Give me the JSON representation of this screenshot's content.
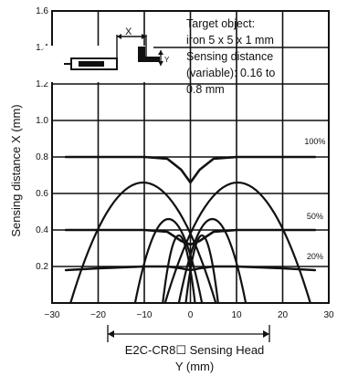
{
  "chart_data": {
    "type": "line",
    "xlabel_lines": [
      "E2C-CR8☐ Sensing Head",
      "Y (mm)"
    ],
    "ylabel": "Sensing distance X (mm)",
    "xlim": [
      -30,
      30
    ],
    "ylim": [
      0,
      1.6
    ],
    "x_ticks": [
      -30,
      -20,
      -10,
      0,
      10,
      20,
      30
    ],
    "x_tick_labels": [
      "−30",
      "−20",
      "−10",
      "0",
      "10",
      "20",
      "30"
    ],
    "y_ticks": [
      0.2,
      0.4,
      0.6,
      0.8,
      1.0,
      1.2,
      1.4,
      1.6
    ],
    "y_tick_labels": [
      "0.2",
      "0.4",
      "0.6",
      "0.8",
      "1.0",
      "1.2",
      "1.4",
      "1.6"
    ],
    "grid": true,
    "annotation": {
      "lines": [
        "Target object:",
        "iron 5 x 5 x 1 mm",
        "Sensing distance",
        "(variable): 0.16 to",
        "0.8 mm"
      ]
    },
    "inset_labels": {
      "x": "X",
      "y": "Y"
    },
    "series": [
      {
        "name": "100%",
        "x": [
          -27,
          -20,
          -10,
          -5,
          -2,
          0,
          2,
          5,
          10,
          20,
          27
        ],
        "y": [
          0.8,
          0.8,
          0.8,
          0.79,
          0.73,
          0.66,
          0.73,
          0.79,
          0.8,
          0.8,
          0.8
        ]
      },
      {
        "name": "50%",
        "x": [
          -27,
          -20,
          -10,
          -5,
          -2,
          0,
          2,
          5,
          10,
          20,
          27
        ],
        "y": [
          0.4,
          0.4,
          0.4,
          0.39,
          0.34,
          0.32,
          0.34,
          0.39,
          0.4,
          0.4,
          0.4
        ]
      },
      {
        "name": "20%",
        "x": [
          -27,
          -20,
          -10,
          -5,
          -2,
          0,
          2,
          5,
          10,
          20,
          27
        ],
        "y": [
          0.18,
          0.19,
          0.2,
          0.2,
          0.19,
          0.18,
          0.19,
          0.2,
          0.2,
          0.19,
          0.18
        ]
      }
    ],
    "dome_arcs": [
      {
        "x_start": -5.5,
        "x_end": 26,
        "height": 0.66
      },
      {
        "x_start": -26,
        "x_end": 5.5,
        "height": 0.66
      },
      {
        "x_start": -2.5,
        "x_end": 12,
        "height": 0.46
      },
      {
        "x_start": -12,
        "x_end": 2.5,
        "height": 0.46
      },
      {
        "x_start": -1,
        "x_end": 6,
        "height": 0.37
      },
      {
        "x_start": -6,
        "x_end": 1,
        "height": 0.37
      }
    ],
    "series_label_y": {
      "100%": 0.87,
      "50%": 0.46,
      "20%": 0.24
    }
  }
}
